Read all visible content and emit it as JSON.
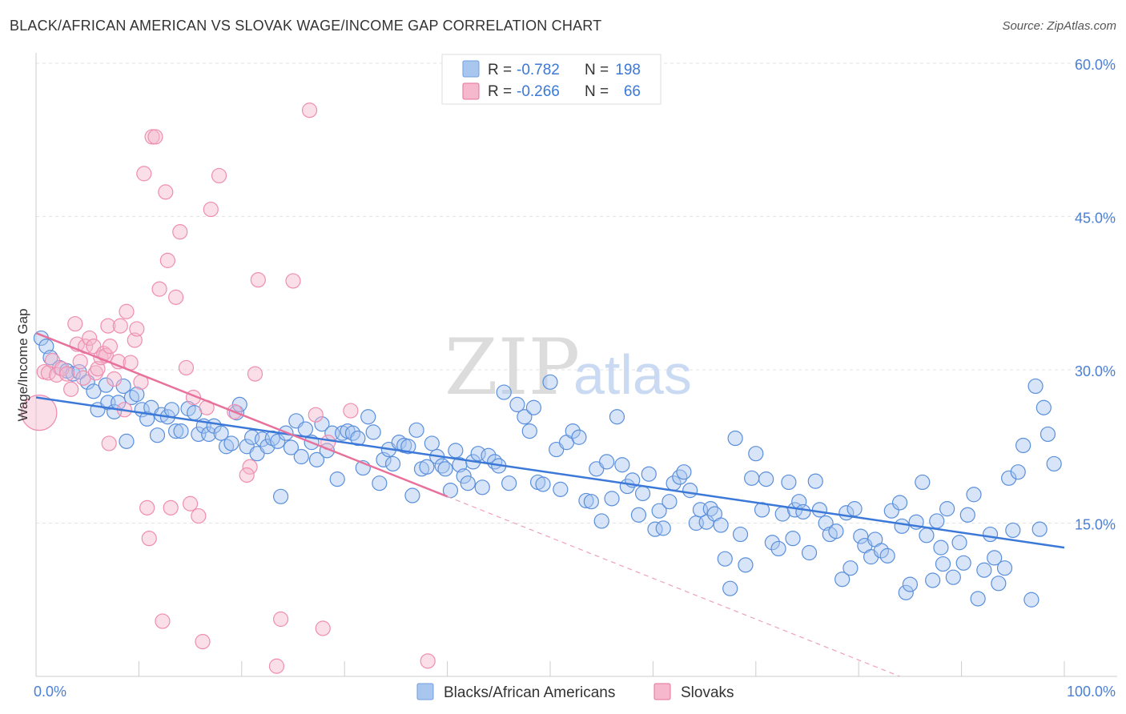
{
  "title": "BLACK/AFRICAN AMERICAN VS SLOVAK WAGE/INCOME GAP CORRELATION CHART",
  "source": "Source: ZipAtlas.com",
  "watermark": {
    "zip": "ZIP",
    "atlas": "atlas"
  },
  "colors": {
    "blue": "#3b78d8",
    "blue_fill": "#a9c6ef",
    "pink": "#e8719c",
    "pink_fill": "#f5b8cd",
    "grid": "#e3e3e3"
  },
  "legend": {
    "rows": [
      {
        "r_label": "R =",
        "r_value": "-0.782",
        "n_label": "N =",
        "n_value": "198"
      },
      {
        "r_label": "R =",
        "r_value": "-0.266",
        "n_label": "N =",
        "n_value": "66"
      }
    ]
  },
  "bottom_legend": [
    "Blacks/African Americans",
    "Slovaks"
  ],
  "chart_data": {
    "type": "scatter",
    "title": "BLACK/AFRICAN AMERICAN VS SLOVAK WAGE/INCOME GAP CORRELATION CHART",
    "xlabel": "",
    "ylabel": "Wage/Income Gap",
    "xlim": [
      0,
      100
    ],
    "ylim": [
      0,
      60
    ],
    "x_ticks": [
      "0.0%",
      "100.0%"
    ],
    "y_ticks": [
      {
        "value": 15,
        "label": "15.0%"
      },
      {
        "value": 30,
        "label": "30.0%"
      },
      {
        "value": 45,
        "label": "45.0%"
      },
      {
        "value": 60,
        "label": "60.0%"
      }
    ],
    "grid": true,
    "legend_position": "top-center",
    "series": [
      {
        "name": "Blacks/African Americans",
        "color": "#3b78d8",
        "R": -0.782,
        "N": 198,
        "trend": {
          "x": [
            0,
            100
          ],
          "y": [
            27.3,
            12.6
          ]
        },
        "points": [
          [
            0.5,
            33.1
          ],
          [
            1.0,
            32.3
          ],
          [
            1.4,
            31.2
          ],
          [
            2.3,
            30.2
          ],
          [
            3.0,
            29.9
          ],
          [
            3.6,
            29.6
          ],
          [
            4.2,
            29.8
          ],
          [
            5.0,
            28.8
          ],
          [
            5.6,
            27.9
          ],
          [
            6.0,
            26.1
          ],
          [
            6.8,
            28.5
          ],
          [
            7.0,
            26.8
          ],
          [
            7.6,
            25.9
          ],
          [
            8.0,
            26.8
          ],
          [
            8.5,
            28.4
          ],
          [
            8.8,
            23.0
          ],
          [
            9.3,
            27.3
          ],
          [
            9.8,
            27.6
          ],
          [
            10.3,
            26.1
          ],
          [
            10.8,
            25.2
          ],
          [
            11.2,
            26.3
          ],
          [
            11.8,
            23.6
          ],
          [
            12.2,
            25.6
          ],
          [
            12.8,
            25.4
          ],
          [
            13.2,
            26.1
          ],
          [
            13.6,
            24.0
          ],
          [
            14.1,
            24.0
          ],
          [
            14.8,
            26.2
          ],
          [
            15.4,
            25.8
          ],
          [
            15.8,
            23.7
          ],
          [
            16.3,
            24.5
          ],
          [
            16.8,
            23.7
          ],
          [
            17.3,
            24.5
          ],
          [
            18.0,
            23.8
          ],
          [
            18.5,
            22.5
          ],
          [
            19.0,
            22.8
          ],
          [
            19.5,
            25.8
          ],
          [
            19.8,
            26.6
          ],
          [
            20.5,
            22.5
          ],
          [
            21.0,
            23.4
          ],
          [
            21.5,
            21.8
          ],
          [
            22.0,
            23.2
          ],
          [
            22.5,
            22.5
          ],
          [
            23.0,
            23.3
          ],
          [
            23.5,
            23.0
          ],
          [
            23.8,
            17.6
          ],
          [
            24.3,
            23.8
          ],
          [
            24.8,
            22.4
          ],
          [
            25.3,
            25.0
          ],
          [
            25.8,
            21.5
          ],
          [
            26.2,
            24.2
          ],
          [
            26.8,
            22.9
          ],
          [
            27.3,
            21.2
          ],
          [
            27.8,
            24.7
          ],
          [
            28.3,
            22.1
          ],
          [
            28.8,
            23.8
          ],
          [
            29.3,
            19.3
          ],
          [
            29.8,
            23.8
          ],
          [
            30.3,
            24.0
          ],
          [
            30.8,
            23.8
          ],
          [
            31.3,
            23.3
          ],
          [
            31.8,
            20.4
          ],
          [
            32.3,
            25.4
          ],
          [
            32.8,
            23.9
          ],
          [
            33.4,
            18.9
          ],
          [
            33.8,
            21.2
          ],
          [
            34.3,
            22.2
          ],
          [
            34.7,
            20.8
          ],
          [
            35.3,
            22.9
          ],
          [
            35.8,
            22.6
          ],
          [
            36.2,
            22.5
          ],
          [
            36.6,
            17.7
          ],
          [
            37.0,
            24.1
          ],
          [
            37.5,
            20.3
          ],
          [
            38.0,
            20.5
          ],
          [
            38.5,
            22.8
          ],
          [
            39.0,
            21.5
          ],
          [
            39.5,
            20.6
          ],
          [
            39.8,
            20.3
          ],
          [
            40.3,
            18.2
          ],
          [
            40.8,
            22.1
          ],
          [
            41.2,
            20.7
          ],
          [
            41.6,
            19.6
          ],
          [
            42.0,
            18.9
          ],
          [
            42.5,
            21.0
          ],
          [
            43.0,
            21.8
          ],
          [
            43.4,
            18.5
          ],
          [
            44.0,
            21.6
          ],
          [
            44.6,
            21.0
          ],
          [
            45.0,
            20.6
          ],
          [
            45.5,
            27.8
          ],
          [
            46.0,
            18.9
          ],
          [
            46.8,
            26.6
          ],
          [
            47.5,
            25.4
          ],
          [
            48.0,
            24.0
          ],
          [
            48.4,
            26.3
          ],
          [
            48.8,
            19.0
          ],
          [
            49.3,
            18.8
          ],
          [
            50.0,
            28.8
          ],
          [
            50.6,
            22.2
          ],
          [
            51.0,
            18.3
          ],
          [
            51.6,
            22.9
          ],
          [
            52.2,
            24.0
          ],
          [
            52.8,
            23.4
          ],
          [
            53.5,
            17.2
          ],
          [
            54.0,
            17.1
          ],
          [
            54.5,
            20.3
          ],
          [
            55.0,
            15.2
          ],
          [
            55.5,
            21.0
          ],
          [
            56.0,
            17.4
          ],
          [
            56.5,
            25.4
          ],
          [
            57.0,
            20.7
          ],
          [
            57.5,
            18.6
          ],
          [
            58.0,
            19.2
          ],
          [
            58.6,
            15.8
          ],
          [
            59.0,
            17.9
          ],
          [
            59.6,
            19.8
          ],
          [
            60.2,
            14.4
          ],
          [
            60.6,
            16.2
          ],
          [
            61.0,
            14.5
          ],
          [
            61.6,
            17.1
          ],
          [
            62.0,
            18.9
          ],
          [
            62.6,
            19.5
          ],
          [
            63.0,
            20.0
          ],
          [
            63.6,
            18.2
          ],
          [
            64.2,
            15.0
          ],
          [
            64.6,
            16.3
          ],
          [
            65.2,
            15.1
          ],
          [
            65.6,
            16.4
          ],
          [
            66.0,
            15.9
          ],
          [
            66.6,
            14.8
          ],
          [
            67.0,
            11.5
          ],
          [
            67.5,
            8.6
          ],
          [
            68.0,
            23.3
          ],
          [
            68.5,
            13.9
          ],
          [
            69.0,
            10.9
          ],
          [
            69.6,
            19.4
          ],
          [
            70.0,
            21.8
          ],
          [
            70.6,
            16.3
          ],
          [
            71.0,
            19.3
          ],
          [
            71.6,
            13.1
          ],
          [
            72.2,
            12.5
          ],
          [
            72.6,
            15.9
          ],
          [
            73.2,
            19.0
          ],
          [
            73.8,
            16.3
          ],
          [
            74.2,
            17.1
          ],
          [
            74.6,
            16.1
          ],
          [
            75.2,
            12.1
          ],
          [
            75.8,
            19.1
          ],
          [
            76.2,
            16.3
          ],
          [
            76.8,
            15.0
          ],
          [
            77.2,
            13.9
          ],
          [
            77.8,
            14.2
          ],
          [
            78.4,
            9.5
          ],
          [
            78.8,
            16.0
          ],
          [
            79.2,
            10.6
          ],
          [
            79.6,
            16.4
          ],
          [
            80.2,
            13.7
          ],
          [
            80.6,
            12.8
          ],
          [
            81.2,
            11.7
          ],
          [
            81.6,
            13.4
          ],
          [
            82.2,
            12.3
          ],
          [
            82.8,
            11.8
          ],
          [
            83.2,
            16.2
          ],
          [
            84.0,
            17.0
          ],
          [
            84.6,
            8.2
          ],
          [
            85.0,
            9.0
          ],
          [
            85.6,
            15.1
          ],
          [
            86.2,
            19.0
          ],
          [
            86.6,
            13.8
          ],
          [
            87.2,
            9.4
          ],
          [
            87.6,
            15.2
          ],
          [
            88.2,
            11.0
          ],
          [
            88.6,
            16.4
          ],
          [
            89.2,
            9.7
          ],
          [
            89.8,
            13.1
          ],
          [
            90.2,
            11.1
          ],
          [
            90.6,
            15.8
          ],
          [
            91.2,
            17.8
          ],
          [
            91.6,
            7.6
          ],
          [
            92.2,
            10.4
          ],
          [
            92.8,
            13.9
          ],
          [
            93.2,
            11.6
          ],
          [
            93.6,
            9.1
          ],
          [
            94.2,
            10.6
          ],
          [
            94.6,
            19.4
          ],
          [
            95.0,
            14.3
          ],
          [
            95.5,
            20.0
          ],
          [
            96.0,
            22.6
          ],
          [
            96.8,
            7.5
          ],
          [
            97.2,
            28.4
          ],
          [
            98.0,
            26.3
          ],
          [
            98.4,
            23.7
          ],
          [
            99.0,
            20.8
          ],
          [
            97.6,
            14.4
          ],
          [
            88.0,
            12.6
          ],
          [
            73.6,
            13.5
          ],
          [
            84.2,
            14.7
          ]
        ]
      },
      {
        "name": "Slovaks",
        "color": "#e8719c",
        "R": -0.266,
        "N": 66,
        "trend": {
          "x": [
            0,
            40
          ],
          "y": [
            33.6,
            17.6
          ]
        },
        "trend_extension": {
          "x": [
            40,
            100
          ],
          "y": [
            17.6,
            -6.4
          ]
        },
        "points": [
          [
            0.3,
            25.8
          ],
          [
            0.8,
            29.8
          ],
          [
            1.2,
            29.7
          ],
          [
            1.6,
            30.9
          ],
          [
            2.0,
            29.5
          ],
          [
            2.5,
            30.1
          ],
          [
            3.0,
            29.6
          ],
          [
            3.4,
            28.1
          ],
          [
            3.8,
            34.5
          ],
          [
            4.0,
            32.5
          ],
          [
            4.3,
            30.8
          ],
          [
            4.6,
            29.2
          ],
          [
            4.8,
            32.3
          ],
          [
            5.2,
            33.1
          ],
          [
            5.6,
            32.3
          ],
          [
            5.8,
            29.7
          ],
          [
            6.0,
            30.1
          ],
          [
            6.3,
            31.2
          ],
          [
            6.6,
            31.6
          ],
          [
            6.8,
            31.4
          ],
          [
            7.0,
            34.3
          ],
          [
            7.2,
            32.3
          ],
          [
            7.6,
            29.1
          ],
          [
            8.0,
            30.8
          ],
          [
            8.2,
            34.3
          ],
          [
            8.6,
            26.1
          ],
          [
            8.8,
            35.7
          ],
          [
            9.2,
            30.7
          ],
          [
            9.6,
            32.9
          ],
          [
            9.8,
            34.0
          ],
          [
            10.2,
            28.8
          ],
          [
            10.5,
            49.2
          ],
          [
            10.8,
            16.5
          ],
          [
            11.0,
            13.5
          ],
          [
            11.3,
            52.8
          ],
          [
            11.6,
            52.8
          ],
          [
            12.0,
            37.9
          ],
          [
            12.3,
            5.4
          ],
          [
            12.6,
            47.4
          ],
          [
            12.8,
            40.7
          ],
          [
            13.1,
            16.5
          ],
          [
            13.6,
            37.1
          ],
          [
            14.0,
            43.5
          ],
          [
            14.6,
            30.2
          ],
          [
            15.0,
            16.9
          ],
          [
            15.3,
            27.3
          ],
          [
            15.8,
            15.7
          ],
          [
            16.2,
            3.4
          ],
          [
            16.6,
            26.3
          ],
          [
            17.0,
            45.7
          ],
          [
            17.8,
            49.0
          ],
          [
            19.3,
            25.9
          ],
          [
            20.8,
            20.5
          ],
          [
            20.5,
            19.7
          ],
          [
            21.3,
            29.6
          ],
          [
            21.6,
            38.8
          ],
          [
            23.4,
            1.0
          ],
          [
            23.8,
            5.6
          ],
          [
            25.0,
            38.7
          ],
          [
            26.6,
            55.4
          ],
          [
            27.2,
            25.6
          ],
          [
            27.9,
            4.7
          ],
          [
            30.6,
            26.0
          ],
          [
            38.1,
            1.5
          ],
          [
            7.1,
            22.8
          ],
          [
            28.4,
            22.9
          ]
        ]
      }
    ]
  }
}
